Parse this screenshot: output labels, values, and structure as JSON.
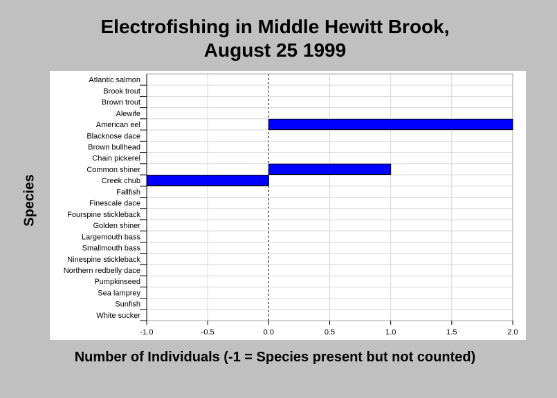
{
  "chart_data": {
    "type": "bar",
    "orientation": "horizontal",
    "title_lines": [
      "Electrofishing in Middle Hewitt Brook,",
      "August 25 1999"
    ],
    "xlabel": "Number of Individuals (-1 = Species present but not counted)",
    "ylabel": "Species",
    "xlim": [
      -1.0,
      2.0
    ],
    "x_ticks": [
      "-1.0",
      "-0.5",
      "0.0",
      "0.5",
      "1.0",
      "1.5",
      "2.0"
    ],
    "grid": true,
    "bar_color": "#0000ff",
    "categories": [
      "Atlantic salmon",
      "Brook trout",
      "Brown trout",
      "Alewife",
      "American eel",
      "Blacknose dace",
      "Brown bullhead",
      "Chain pickerel",
      "Common shiner",
      "Creek chub",
      "Fallfish",
      "Finescale dace",
      "Fourspine stickleback",
      "Golden shiner",
      "Largemouth bass",
      "Smallmouth bass",
      "Ninespine stickleback",
      "Northern redbelly dace",
      "Pumpkinseed",
      "Sea lamprey",
      "Sunfish",
      "White sucker"
    ],
    "values": [
      0,
      0,
      0,
      0,
      2,
      0,
      0,
      0,
      1,
      -1,
      0,
      0,
      0,
      0,
      0,
      0,
      0,
      0,
      0,
      0,
      0,
      0
    ]
  }
}
